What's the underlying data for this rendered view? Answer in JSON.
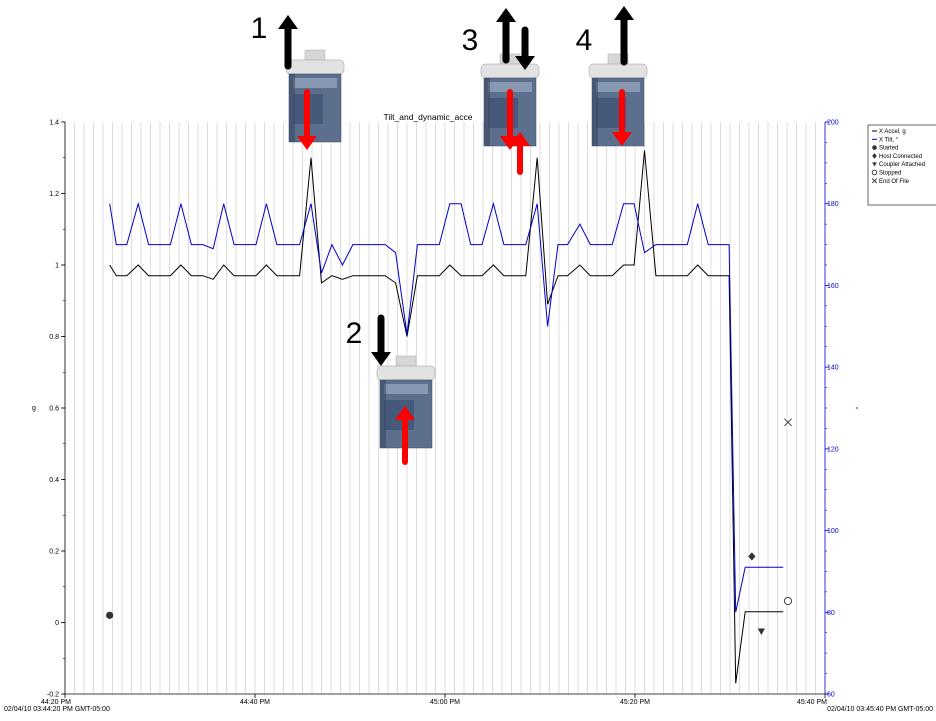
{
  "chart_data": {
    "type": "line",
    "title": "Tilt_and_dynamic_acce",
    "ylabel": "g",
    "y2label": "°",
    "ylim": [
      -0.2,
      1.4
    ],
    "y2lim": [
      60,
      200
    ],
    "yticks": [
      "-0.2",
      "0",
      "0.2",
      "0.4",
      "0.6",
      "0.8",
      "1",
      "1.2",
      "1.4"
    ],
    "y2ticks": [
      "60",
      "80",
      "100",
      "120",
      "140",
      "160",
      "180",
      "200"
    ],
    "xlim": [
      0,
      80
    ],
    "xticks": [
      {
        "x": 0,
        "label": "44:20 PM",
        "sub": "02/04/10 03:44:20 PM GMT-05:00"
      },
      {
        "x": 20,
        "label": "44:40 PM",
        "sub": ""
      },
      {
        "x": 40,
        "label": "45:00 PM",
        "sub": ""
      },
      {
        "x": 60,
        "label": "45:20 PM",
        "sub": ""
      },
      {
        "x": 80,
        "label": "45:40 PM",
        "sub": "02/04/10 03:45:40 PM GMT-05:00"
      }
    ],
    "x_unit": "seconds after 03:44:20 PM",
    "grid": true,
    "legend_position": "right",
    "series": [
      {
        "name": "X Accel, g",
        "color": "#000000",
        "axis": "left",
        "points": [
          [
            4.7,
            1
          ],
          [
            5.4,
            0.97
          ],
          [
            6.5,
            0.97
          ],
          [
            7.7,
            1
          ],
          [
            8.8,
            0.97
          ],
          [
            11.1,
            0.97
          ],
          [
            12.2,
            1
          ],
          [
            13.3,
            0.97
          ],
          [
            14.5,
            0.97
          ],
          [
            15.6,
            0.96
          ],
          [
            16.7,
            1
          ],
          [
            17.8,
            0.97
          ],
          [
            20.1,
            0.97
          ],
          [
            21.2,
            1
          ],
          [
            22.3,
            0.97
          ],
          [
            24.7,
            0.97
          ],
          [
            25.9,
            1.3
          ],
          [
            27,
            0.95
          ],
          [
            28.1,
            0.97
          ],
          [
            29.2,
            0.96
          ],
          [
            30.3,
            0.97
          ],
          [
            33.7,
            0.97
          ],
          [
            34.8,
            0.95
          ],
          [
            36,
            0.8
          ],
          [
            37.1,
            0.97
          ],
          [
            39.4,
            0.97
          ],
          [
            40.5,
            1
          ],
          [
            41.7,
            0.97
          ],
          [
            43.9,
            0.97
          ],
          [
            45.1,
            1
          ],
          [
            46.2,
            0.97
          ],
          [
            48.5,
            0.97
          ],
          [
            49.7,
            1.3
          ],
          [
            50.8,
            0.89
          ],
          [
            51.9,
            0.97
          ],
          [
            52.9,
            0.97
          ],
          [
            54.2,
            1
          ],
          [
            55.3,
            0.97
          ],
          [
            57.6,
            0.97
          ],
          [
            58.8,
            1
          ],
          [
            59.9,
            1
          ],
          [
            61,
            1.32
          ],
          [
            62.2,
            0.97
          ],
          [
            65.5,
            0.97
          ],
          [
            66.6,
            1
          ],
          [
            67.7,
            0.97
          ],
          [
            69.9,
            0.97
          ],
          [
            70.6,
            -0.17
          ],
          [
            71.6,
            0.03
          ],
          [
            75.6,
            0.03
          ]
        ]
      },
      {
        "name": "X Tilt, °",
        "color": "#0000cc",
        "axis": "right",
        "points": [
          [
            4.7,
            180
          ],
          [
            5.4,
            170
          ],
          [
            6.5,
            170
          ],
          [
            7.7,
            180
          ],
          [
            8.8,
            170
          ],
          [
            11.1,
            170
          ],
          [
            12.2,
            180
          ],
          [
            13.3,
            170
          ],
          [
            14.5,
            170
          ],
          [
            15.6,
            169
          ],
          [
            16.7,
            180
          ],
          [
            17.8,
            170
          ],
          [
            20.1,
            170
          ],
          [
            21.2,
            180
          ],
          [
            22.3,
            170
          ],
          [
            24.7,
            170
          ],
          [
            25.9,
            180
          ],
          [
            27,
            163
          ],
          [
            28.1,
            170
          ],
          [
            29.2,
            165
          ],
          [
            30.3,
            170
          ],
          [
            33.7,
            170
          ],
          [
            34.8,
            168
          ],
          [
            36,
            148
          ],
          [
            37.1,
            170
          ],
          [
            39.4,
            170
          ],
          [
            40.5,
            180
          ],
          [
            41.7,
            180
          ],
          [
            42.7,
            170
          ],
          [
            43.9,
            170
          ],
          [
            45.1,
            180
          ],
          [
            46.2,
            170
          ],
          [
            48.5,
            170
          ],
          [
            49.7,
            180
          ],
          [
            50.8,
            150
          ],
          [
            51.9,
            170
          ],
          [
            52.9,
            170
          ],
          [
            54.2,
            175
          ],
          [
            55.3,
            170
          ],
          [
            57.6,
            170
          ],
          [
            58.8,
            180
          ],
          [
            59.9,
            180
          ],
          [
            61,
            168
          ],
          [
            62.2,
            170
          ],
          [
            64.4,
            170
          ],
          [
            65.5,
            170
          ],
          [
            66.6,
            180
          ],
          [
            67.7,
            170
          ],
          [
            69.9,
            170
          ],
          [
            70.6,
            80
          ],
          [
            71.6,
            91
          ],
          [
            75.6,
            91
          ]
        ]
      }
    ],
    "markers": [
      {
        "name": "Started",
        "symbol": "filled-circle",
        "x": 4.7,
        "y": 0.02
      },
      {
        "name": "Host Connected",
        "symbol": "diamond",
        "x": 72.3,
        "y": 0.185
      },
      {
        "name": "Coupler Attached",
        "symbol": "triangle-down",
        "x": 73.3,
        "y": -0.025
      },
      {
        "name": "Stopped",
        "symbol": "open-circle",
        "x": 76.1,
        "y": 0.06
      },
      {
        "name": "End Of File",
        "symbol": "x",
        "x": 76.1,
        "y": 0.56
      }
    ],
    "legend": [
      {
        "label": "X Accel, g",
        "symbol": "line",
        "color": "#000000"
      },
      {
        "label": "X Tilt, °",
        "symbol": "line",
        "color": "#0000cc"
      },
      {
        "label": "Started",
        "symbol": "filled-circle",
        "color": "#333333"
      },
      {
        "label": "Host Connected",
        "symbol": "diamond",
        "color": "#333333"
      },
      {
        "label": "Coupler Attached",
        "symbol": "triangle-down",
        "color": "#333333"
      },
      {
        "label": "Stopped",
        "symbol": "open-circle",
        "color": "#333333"
      },
      {
        "label": "End Of File",
        "symbol": "x",
        "color": "#333333"
      }
    ],
    "annotations": [
      {
        "label": "1",
        "arrows": [
          "up"
        ],
        "inner_arrow": "down",
        "extra_arrow": "",
        "at_x": 26
      },
      {
        "label": "2",
        "arrows": [
          "down"
        ],
        "inner_arrow": "up",
        "extra_arrow": "",
        "at_x": 36.5
      },
      {
        "label": "3",
        "arrows": [
          "up",
          "down"
        ],
        "inner_arrow": "down",
        "extra_arrow": "up",
        "at_x": 50
      },
      {
        "label": "4",
        "arrows": [
          "up"
        ],
        "inner_arrow": "down",
        "extra_arrow": "",
        "at_x": 61
      }
    ]
  }
}
